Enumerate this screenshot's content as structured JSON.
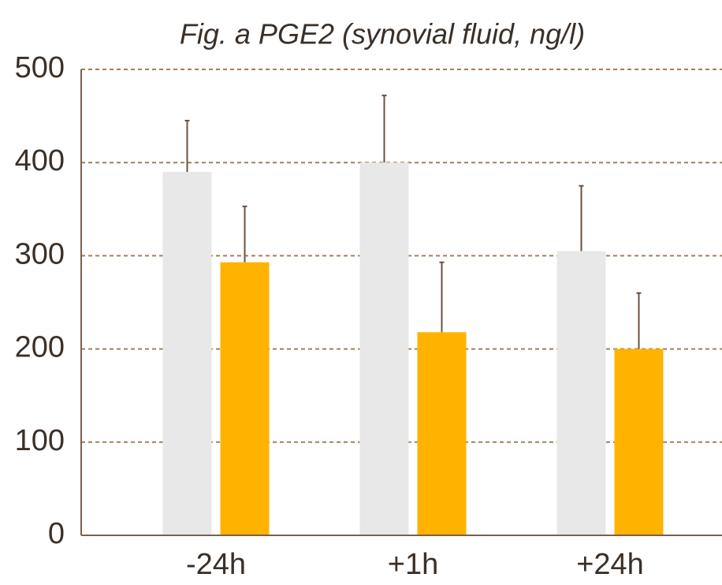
{
  "chart_data": {
    "type": "bar",
    "title": "Fig. a PGE2 (synovial fluid, ng/l)",
    "categories": [
      "-24h",
      "+1h",
      "+24h"
    ],
    "series": [
      {
        "color": "#e8e8e8",
        "values": [
          390,
          400,
          305
        ],
        "errors": [
          55,
          72,
          70
        ]
      },
      {
        "color": "#ffb300",
        "values": [
          293,
          218,
          200
        ],
        "errors": [
          60,
          75,
          60
        ]
      }
    ],
    "ylim": [
      0,
      500
    ],
    "yticks": [
      0,
      100,
      200,
      300,
      400,
      500
    ],
    "grid": true
  }
}
